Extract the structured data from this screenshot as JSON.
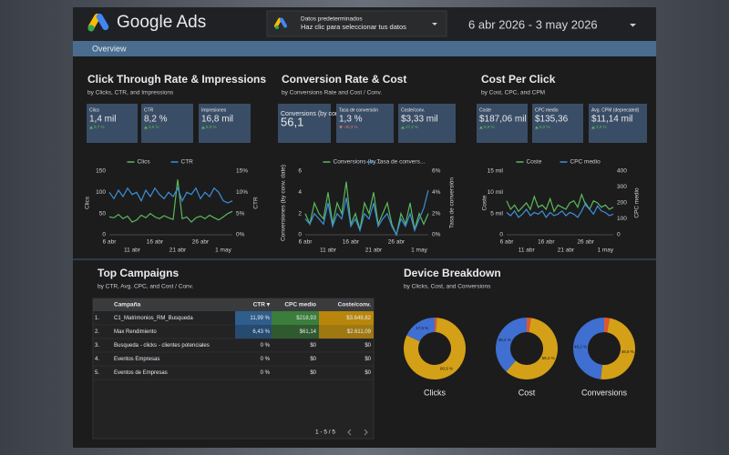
{
  "header": {
    "brand": "Google Ads",
    "source_title": "Datos predeterminados",
    "source_hint": "Haz clic para seleccionar tus datos",
    "date_range": "6 abr 2026 - 3 may 2026",
    "tab": "Overview"
  },
  "sections": [
    {
      "title": "Click Through Rate & Impressions",
      "subtitle": "by Clicks, CTR, and Impressions"
    },
    {
      "title": "Conversion Rate & Cost",
      "subtitle": "by Conversions Rate and Cost / Conv."
    },
    {
      "title": "Cost Per Click",
      "subtitle": "by Cost, CPC, and CPM"
    },
    {
      "title": "Top Campaigns",
      "subtitle": "by CTR, Avg. CPC, and Cost / Conv."
    },
    {
      "title": "Device Breakdown",
      "subtitle": "by Clicks, Cost, and Conversions"
    }
  ],
  "scorecards": [
    {
      "label": "Clics",
      "value": "1,4 mil",
      "delta": "9,7 %",
      "trend": "up"
    },
    {
      "label": "CTR",
      "value": "8,2 %",
      "delta": "3,6 %",
      "trend": "up"
    },
    {
      "label": "Impresiones",
      "value": "16,8 mil",
      "delta": "6,8 %",
      "trend": "up"
    },
    {
      "label": "Conversions (by conv. date)",
      "value": "56,1"
    },
    {
      "label": "Tasa de conversión",
      "value": "1,3 %",
      "delta": "-40,3 %",
      "trend": "down"
    },
    {
      "label": "Coste/conv.",
      "value": "$3,33 mil",
      "delta": "27,2 %",
      "trend": "up"
    },
    {
      "label": "Coste",
      "value": "$187,06 mil",
      "delta": "9,9 %",
      "trend": "up"
    },
    {
      "label": "CPC medio",
      "value": "$135,36",
      "delta": "6,0 %",
      "trend": "up"
    },
    {
      "label": "Avg. CPM (deprecated)",
      "value": "$11,14 mil",
      "delta": "3,0 %",
      "trend": "up"
    }
  ],
  "chart_data": [
    {
      "type": "line",
      "ylabel": "Clics",
      "y2label": "CTR",
      "categories": [
        "6 abr",
        null,
        null,
        null,
        null,
        "11 abr",
        null,
        null,
        null,
        null,
        "16 abr",
        null,
        null,
        null,
        null,
        "21 abr",
        null,
        null,
        null,
        null,
        "26 abr",
        null,
        null,
        null,
        null,
        "1 may",
        null,
        null
      ],
      "ylim": [
        0,
        150
      ],
      "yticks": [
        0,
        50,
        100,
        150
      ],
      "y2lim": [
        0,
        15
      ],
      "y2ticks": [
        {
          "value": 0,
          "label": "0%"
        },
        {
          "value": 5,
          "label": "5%"
        },
        {
          "value": 10,
          "label": "10%"
        },
        {
          "value": 15,
          "label": "15%"
        }
      ],
      "series": [
        {
          "name": "Clics",
          "color": "#5cb85c",
          "values": [
            42,
            40,
            48,
            38,
            44,
            30,
            35,
            46,
            40,
            50,
            42,
            38,
            45,
            40,
            36,
            130,
            38,
            42,
            30,
            40,
            44,
            38,
            46,
            40,
            35,
            42,
            50,
            55
          ]
        },
        {
          "name": "CTR",
          "color": "#3d8fd8",
          "axis": "y2",
          "values": [
            10,
            8.5,
            10.5,
            9,
            11,
            9.5,
            10,
            8,
            10.5,
            9,
            11,
            9.5,
            8.5,
            10,
            9,
            11,
            8,
            10,
            9.5,
            11,
            8.5,
            10,
            9,
            11,
            10,
            8,
            7.5,
            8
          ]
        }
      ]
    },
    {
      "type": "line",
      "ylabel": "Conversiones (by conv. date)",
      "y2label": "Tasa de conversión",
      "categories": [
        "6 abr",
        null,
        null,
        null,
        null,
        "11 abr",
        null,
        null,
        null,
        null,
        "16 abr",
        null,
        null,
        null,
        null,
        "21 abr",
        null,
        null,
        null,
        null,
        "26 abr",
        null,
        null,
        null,
        null,
        "1 may",
        null,
        null
      ],
      "ylim": [
        0,
        6
      ],
      "yticks": [
        0,
        2,
        4,
        6
      ],
      "y2lim": [
        0,
        6
      ],
      "y2ticks": [
        {
          "value": 0,
          "label": "0%"
        },
        {
          "value": 2,
          "label": "2%"
        },
        {
          "value": 4,
          "label": "4%"
        },
        {
          "value": 6,
          "label": "6%"
        }
      ],
      "series": [
        {
          "name": "Conversions (by...",
          "color": "#5cb85c",
          "values": [
            2,
            1,
            3,
            2,
            1.5,
            4,
            1,
            3,
            2,
            5,
            1,
            2,
            0.5,
            3,
            2,
            4,
            1,
            2,
            3,
            1,
            0,
            2,
            1,
            3,
            0.5,
            2,
            1,
            2
          ]
        },
        {
          "name": "Tasa de convers...",
          "color": "#3d8fd8",
          "axis": "y2",
          "values": [
            1.5,
            1,
            2,
            1.5,
            1,
            3,
            0.8,
            2,
            1.5,
            3.5,
            0.8,
            1.5,
            0.4,
            2,
            1.5,
            3,
            0.8,
            1.5,
            2,
            0.8,
            0,
            1.5,
            0.8,
            2,
            0.4,
            1.5,
            2.5,
            4.2
          ]
        }
      ]
    },
    {
      "type": "line",
      "ylabel": "Coste",
      "y2label": "CPC medio",
      "categories": [
        "6 abr",
        null,
        null,
        null,
        null,
        "11 abr",
        null,
        null,
        null,
        null,
        "16 abr",
        null,
        null,
        null,
        null,
        "21 abr",
        null,
        null,
        null,
        null,
        "26 abr",
        null,
        null,
        null,
        null,
        "1 may",
        null,
        null
      ],
      "ylim": [
        0,
        15000
      ],
      "yticks": [
        0,
        {
          "value": 5000,
          "label": "5 mil"
        },
        {
          "value": 10000,
          "label": "10 mil"
        },
        {
          "value": 15000,
          "label": "15 mil"
        }
      ],
      "y2lim": [
        0,
        400
      ],
      "y2ticks": [
        0,
        100,
        200,
        300,
        400
      ],
      "series": [
        {
          "name": "Coste",
          "color": "#5cb85c",
          "values": [
            8000,
            6000,
            7000,
            5500,
            6500,
            7500,
            6000,
            9000,
            6500,
            7000,
            6000,
            8500,
            5500,
            7000,
            6500,
            6000,
            7500,
            8000,
            6500,
            9500,
            7000,
            6000,
            8000,
            7500,
            6500,
            7000,
            6000,
            6500
          ]
        },
        {
          "name": "CPC medio",
          "color": "#3d8fd8",
          "axis": "y2",
          "values": [
            140,
            120,
            150,
            110,
            130,
            160,
            120,
            140,
            130,
            150,
            110,
            140,
            120,
            130,
            150,
            120,
            140,
            130,
            110,
            150,
            200,
            160,
            130,
            180,
            150,
            140,
            120,
            130
          ]
        }
      ]
    },
    {
      "type": "donut",
      "title": "Clicks",
      "values": [
        1.2,
        80.9,
        17.9
      ],
      "value_labels": [
        null,
        "80,9 %",
        "17,9 %"
      ],
      "colors": [
        "#e0552f",
        "#d4a017",
        "#3f6fd1"
      ]
    },
    {
      "type": "donut",
      "title": "Cost",
      "values": [
        2.2,
        59.4,
        38.4
      ],
      "value_labels": [
        null,
        "59,4 %",
        "38,4 %"
      ],
      "colors": [
        "#e0552f",
        "#d4a017",
        "#3f6fd1"
      ]
    },
    {
      "type": "donut",
      "title": "Conversions",
      "values": [
        2.9,
        48.9,
        48.2
      ],
      "value_labels": [
        null,
        "48,9 %",
        "48,2 %"
      ],
      "colors": [
        "#e0552f",
        "#d4a017",
        "#3f6fd1"
      ]
    }
  ],
  "table": {
    "columns": [
      "Campaña",
      "CTR ▾",
      "CPC medio",
      "Coste/conv."
    ],
    "rows": [
      [
        "1.",
        "C1_Matrimonios_RM_Busqueda",
        "11,99 %",
        "$218,93",
        "$3.649,82"
      ],
      [
        "2.",
        "Max Rendimiento",
        "6,43 %",
        "$61,14",
        "$2.611,09"
      ],
      [
        "3.",
        "Busqueda - clicks - clientes potenciales",
        "0 %",
        "$0",
        "$0"
      ],
      [
        "4.",
        "Eventos Empresas",
        "0 %",
        "$0",
        "$0"
      ],
      [
        "5.",
        "Eventos de Empresas",
        "0 %",
        "$0",
        "$0"
      ]
    ],
    "pagination": "1 - 5 / 5"
  }
}
